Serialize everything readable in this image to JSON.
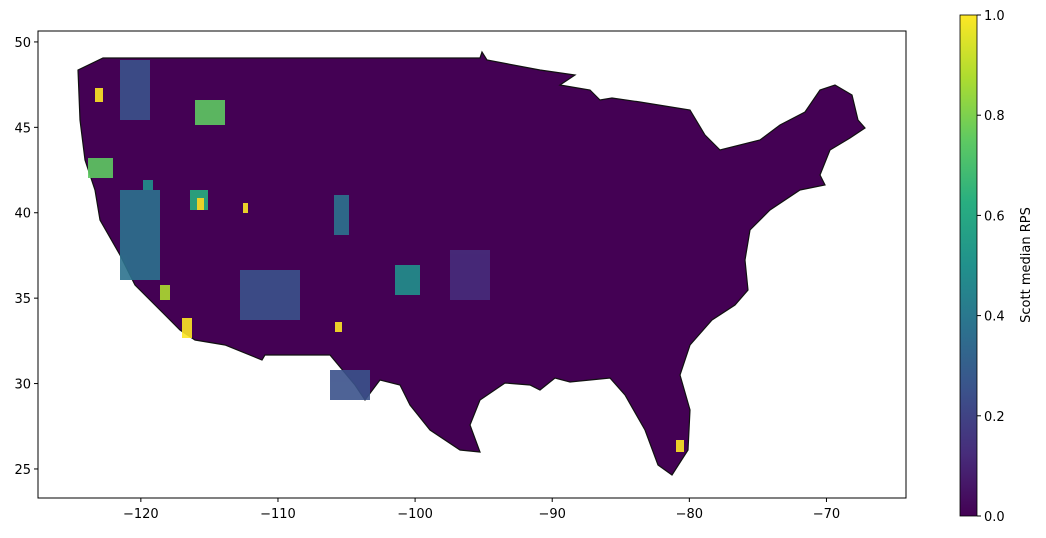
{
  "chart_data": {
    "type": "choropleth",
    "colorbar_label": "Scott median RPS",
    "xlim": [
      -127.5,
      -64.2
    ],
    "ylim": [
      23.3,
      50.64
    ],
    "xticks": [
      {
        "value": -120,
        "label": "−120"
      },
      {
        "value": -110,
        "label": "−110"
      },
      {
        "value": -100,
        "label": "−100"
      },
      {
        "value": -90,
        "label": "−90"
      },
      {
        "value": -80,
        "label": "−80"
      },
      {
        "value": -70,
        "label": "−70"
      }
    ],
    "yticks": [
      25,
      30,
      35,
      40,
      45,
      50
    ],
    "clim": [
      0,
      1
    ],
    "cticks": [
      {
        "value": 0,
        "label": "0.0"
      },
      {
        "value": 0.2,
        "label": "0.2"
      },
      {
        "value": 0.4,
        "label": "0.4"
      },
      {
        "value": 0.6,
        "label": "0.6"
      },
      {
        "value": 0.8,
        "label": "0.8"
      },
      {
        "value": 1,
        "label": "1.0"
      }
    ],
    "colormap": "viridis"
  }
}
